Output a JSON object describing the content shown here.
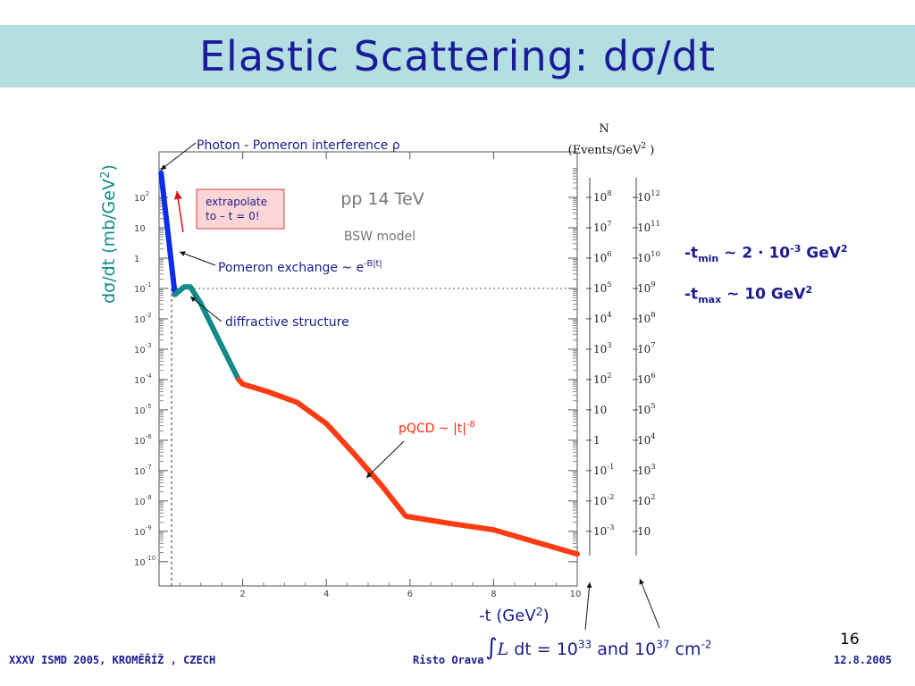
{
  "slide": {
    "title_main": "Elastic Scattering: d",
    "title_sigma": "σ",
    "title_tail": "/dt",
    "page_number": "16",
    "footer_left": "XXXV ISMD 2005, KROMĚŘÍŽ , CZECH",
    "footer_center": "Risto Orava",
    "footer_right": "12.8.2005"
  },
  "notes": {
    "tmin": {
      "prefix": "-t",
      "sub": "min",
      "mid": " ~ 2 · 10",
      "exp": "-3",
      "unit": " GeV",
      "unit_exp": "2"
    },
    "tmax": {
      "prefix": "-t",
      "sub": "max",
      "mid": " ~ 10 GeV",
      "exp": "2"
    },
    "luminosity": {
      "integral": "∫",
      "script_l": "L",
      "text1": " dt = 10",
      "exp1": "33",
      "text2": " and 10",
      "exp2": "37",
      "text3": " cm",
      "exp3": "-2"
    }
  },
  "colors": {
    "title_bar": "#b3dfe2",
    "title_text": "#1b1b9a",
    "pomeron": "#0b2ee6",
    "diffractive": "#138a8a",
    "pqcd": "#ff3b14",
    "annotation": "#1b1b8f"
  },
  "chart_data": {
    "type": "line",
    "inner_title": "pp 14 TeV",
    "inner_subtitle": "BSW model",
    "xlabel": "-t (GeV",
    "xlabel_exp": "2",
    "xlabel_close": ")",
    "ylabel": "dσ/dt (mb/GeV",
    "ylabel_exp": "2",
    "ylabel_close": ")",
    "log_y": true,
    "xlim": [
      0,
      10
    ],
    "ylim_exp": [
      -10.8,
      3.5
    ],
    "grid": false,
    "x_ticks": [
      {
        "value": 2,
        "label": "2"
      },
      {
        "value": 4,
        "label": "4"
      },
      {
        "value": 6,
        "label": "6"
      },
      {
        "value": 8,
        "label": "8"
      },
      {
        "value": 10,
        "label": "10"
      }
    ],
    "y_ticks": [
      {
        "exp": 2,
        "base": "10",
        "sup": "2"
      },
      {
        "exp": 1,
        "base": "10",
        "sup": ""
      },
      {
        "exp": 0,
        "base": "1",
        "sup": ""
      },
      {
        "exp": -1,
        "base": "10",
        "sup": "-1"
      },
      {
        "exp": -2,
        "base": "10",
        "sup": "-2"
      },
      {
        "exp": -3,
        "base": "10",
        "sup": "-3"
      },
      {
        "exp": -4,
        "base": "10",
        "sup": "-4"
      },
      {
        "exp": -5,
        "base": "10",
        "sup": "-5"
      },
      {
        "exp": -6,
        "base": "10",
        "sup": "-6"
      },
      {
        "exp": -7,
        "base": "10",
        "sup": "-7"
      },
      {
        "exp": -8,
        "base": "10",
        "sup": "-8"
      },
      {
        "exp": -9,
        "base": "10",
        "sup": "-9"
      },
      {
        "exp": -10,
        "base": "10",
        "sup": "-10"
      }
    ],
    "series": [
      {
        "name": "Pomeron exchange",
        "color": "#0b2ee6",
        "points": [
          [
            0.05,
            2.8
          ],
          [
            0.38,
            -1.2
          ]
        ]
      },
      {
        "name": "diffractive structure",
        "color": "#138a8a",
        "points": [
          [
            0.38,
            -1.2
          ],
          [
            0.6,
            -0.95
          ],
          [
            0.75,
            -0.95
          ],
          [
            1.0,
            -1.5
          ],
          [
            1.5,
            -2.9
          ],
          [
            1.9,
            -4.0
          ]
        ]
      },
      {
        "name": "pQCD",
        "color": "#ff3b14",
        "points": [
          [
            1.9,
            -4.0
          ],
          [
            2.0,
            -4.15
          ],
          [
            2.6,
            -4.4
          ],
          [
            3.3,
            -4.75
          ],
          [
            4.0,
            -5.45
          ],
          [
            4.6,
            -6.35
          ],
          [
            5.3,
            -7.45
          ],
          [
            5.9,
            -8.5
          ],
          [
            6.1,
            -8.55
          ],
          [
            7.0,
            -8.75
          ],
          [
            8.0,
            -8.95
          ],
          [
            9.0,
            -9.35
          ],
          [
            10.0,
            -9.75
          ]
        ]
      }
    ],
    "tmin_guide": {
      "x": 0.3,
      "log_y": -1.0
    },
    "events_axis_title": "N",
    "events_axis_subtitle": "(Events/GeV",
    "events_axis_subtitle_exp": "2",
    "events_axis_subtitle_close": " )",
    "events_axis_1": [
      {
        "exp": 2,
        "base": "10",
        "sup": "8"
      },
      {
        "exp": 1,
        "base": "10",
        "sup": "7"
      },
      {
        "exp": 0,
        "base": "10",
        "sup": "6"
      },
      {
        "exp": -1,
        "base": "10",
        "sup": "5"
      },
      {
        "exp": -2,
        "base": "10",
        "sup": "4"
      },
      {
        "exp": -3,
        "base": "10",
        "sup": "3"
      },
      {
        "exp": -4,
        "base": "10",
        "sup": "2"
      },
      {
        "exp": -5,
        "base": "10",
        "sup": ""
      },
      {
        "exp": -6,
        "base": "1",
        "sup": ""
      },
      {
        "exp": -7,
        "base": "10",
        "sup": "-1"
      },
      {
        "exp": -8,
        "base": "10",
        "sup": "-2"
      },
      {
        "exp": -9,
        "base": "10",
        "sup": "-3"
      }
    ],
    "events_axis_2": [
      {
        "exp": 2,
        "base": "10",
        "sup": "12"
      },
      {
        "exp": 1,
        "base": "10",
        "sup": "11"
      },
      {
        "exp": 0,
        "base": "10",
        "sup": "10"
      },
      {
        "exp": -1,
        "base": "10",
        "sup": "9"
      },
      {
        "exp": -2,
        "base": "10",
        "sup": "8"
      },
      {
        "exp": -3,
        "base": "10",
        "sup": "7"
      },
      {
        "exp": -4,
        "base": "10",
        "sup": "6"
      },
      {
        "exp": -5,
        "base": "10",
        "sup": "5"
      },
      {
        "exp": -6,
        "base": "10",
        "sup": "4"
      },
      {
        "exp": -7,
        "base": "10",
        "sup": "3"
      },
      {
        "exp": -8,
        "base": "10",
        "sup": "2"
      },
      {
        "exp": -9,
        "base": "10",
        "sup": ""
      }
    ],
    "annotations": {
      "photon": {
        "text": "Photon - Pomeron interference ",
        "symbol": "ρ"
      },
      "pomeron": {
        "text": "Pomeron exchange ~ e",
        "exp": "-B|t|"
      },
      "diffractive": "diffractive structure",
      "pqcd": {
        "text": "pQCD ~ |t|",
        "exp": "-8"
      },
      "extrapolate_line1": "extrapolate",
      "extrapolate_line2": "to – t = 0!"
    }
  }
}
